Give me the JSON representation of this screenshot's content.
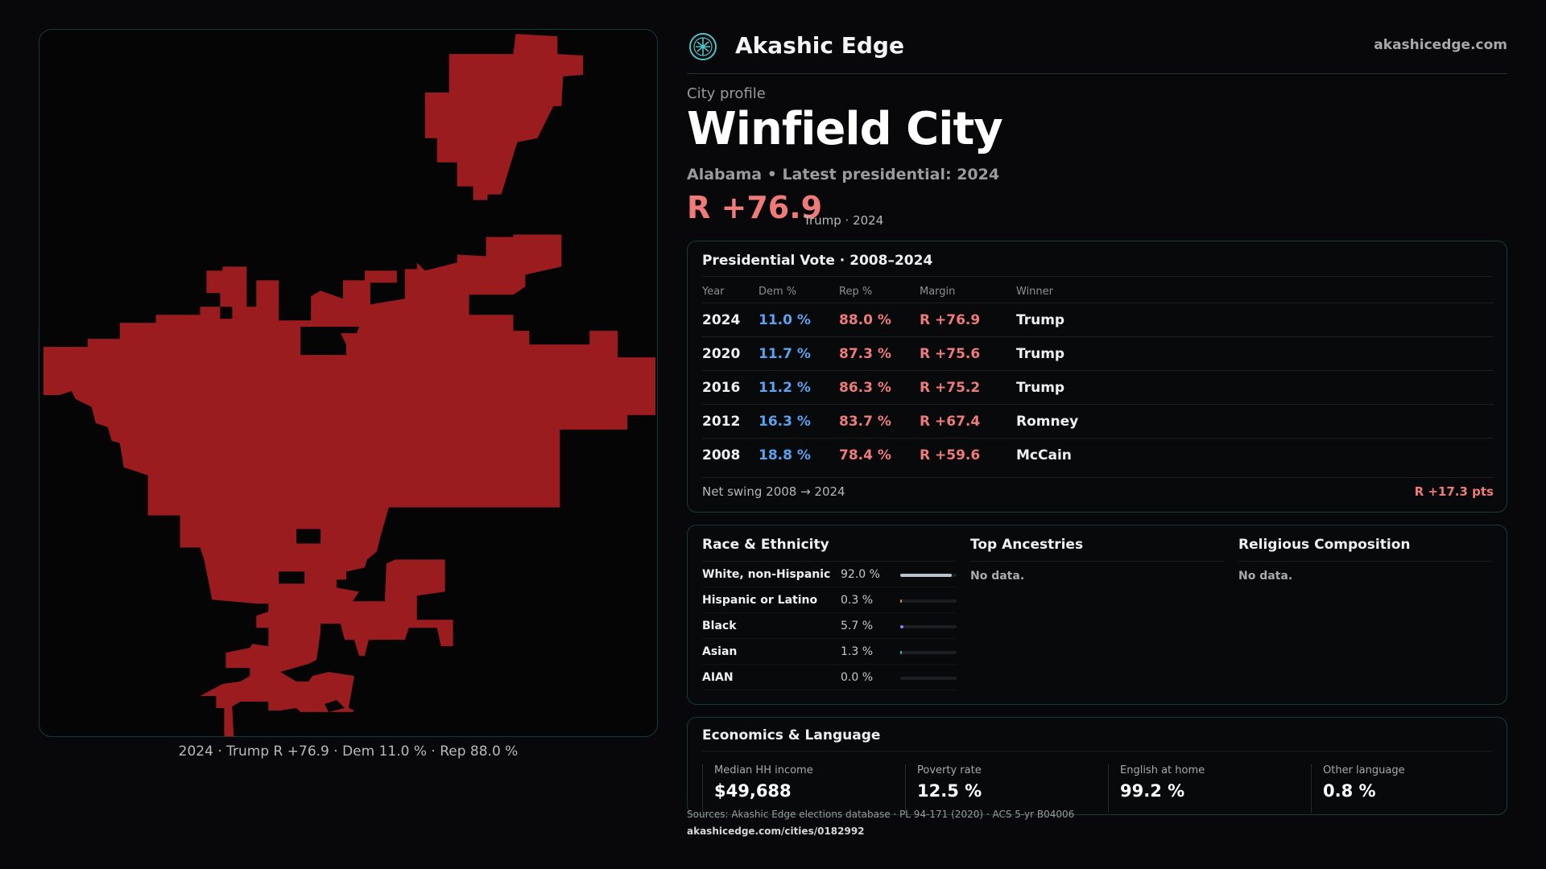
{
  "map": {
    "caption": "2024 · Trump R +76.9 · Dem 11.0 % · Rep 88.0 %",
    "fill_color": "#9b1c1f"
  },
  "brand": {
    "name": "Akashic Edge",
    "url": "akashicedge.com",
    "logo_icon": "tree-of-life-icon"
  },
  "profile": {
    "kicker": "City profile",
    "city": "Winfield City",
    "subtitle": "Alabama • Latest presidential: 2024",
    "margin": "R +76.9",
    "margin_note": "Trump · 2024"
  },
  "presidential": {
    "title": "Presidential Vote · 2008–2024",
    "headers": {
      "year": "Year",
      "dem": "Dem %",
      "rep": "Rep %",
      "margin": "Margin",
      "winner": "Winner"
    },
    "rows": [
      {
        "year": "2024",
        "dem": "11.0 %",
        "rep": "88.0 %",
        "margin": "R +76.9",
        "winner": "Trump"
      },
      {
        "year": "2020",
        "dem": "11.7 %",
        "rep": "87.3 %",
        "margin": "R +75.6",
        "winner": "Trump"
      },
      {
        "year": "2016",
        "dem": "11.2 %",
        "rep": "86.3 %",
        "margin": "R +75.2",
        "winner": "Trump"
      },
      {
        "year": "2012",
        "dem": "16.3 %",
        "rep": "83.7 %",
        "margin": "R +67.4",
        "winner": "Romney"
      },
      {
        "year": "2008",
        "dem": "18.8 %",
        "rep": "78.4 %",
        "margin": "R +59.6",
        "winner": "McCain"
      }
    ],
    "swing_label": "Net swing 2008 → 2024",
    "swing_value": "R +17.3 pts"
  },
  "race": {
    "title": "Race & Ethnicity",
    "rows": [
      {
        "label": "White, non-Hispanic",
        "pct": "92.0 %",
        "value": 0.92,
        "color": "#b8c2cc"
      },
      {
        "label": "Hispanic or Latino",
        "pct": "0.3 %",
        "value": 0.003,
        "color": "#e08a3c"
      },
      {
        "label": "Black",
        "pct": "5.7 %",
        "value": 0.057,
        "color": "#8a7ff0"
      },
      {
        "label": "Asian",
        "pct": "1.3 %",
        "value": 0.013,
        "color": "#3cbfa0"
      },
      {
        "label": "AIAN",
        "pct": "0.0 %",
        "value": 0.0,
        "color": "#c0c0c0"
      }
    ]
  },
  "ancestries": {
    "title": "Top Ancestries",
    "empty": "No data."
  },
  "religion": {
    "title": "Religious Composition",
    "empty": "No data."
  },
  "economics": {
    "title": "Economics & Language",
    "stats": [
      {
        "label": "Median HH income",
        "value": "$49,688"
      },
      {
        "label": "Poverty rate",
        "value": "12.5 %"
      },
      {
        "label": "English at home",
        "value": "99.2 %"
      },
      {
        "label": "Other language",
        "value": "0.8 %"
      }
    ]
  },
  "footer": {
    "sources": "Sources: Akashic Edge elections database · PL 94-171 (2020) · ACS 5-yr B04006",
    "permalink": "akashicedge.com/cities/0182992"
  }
}
